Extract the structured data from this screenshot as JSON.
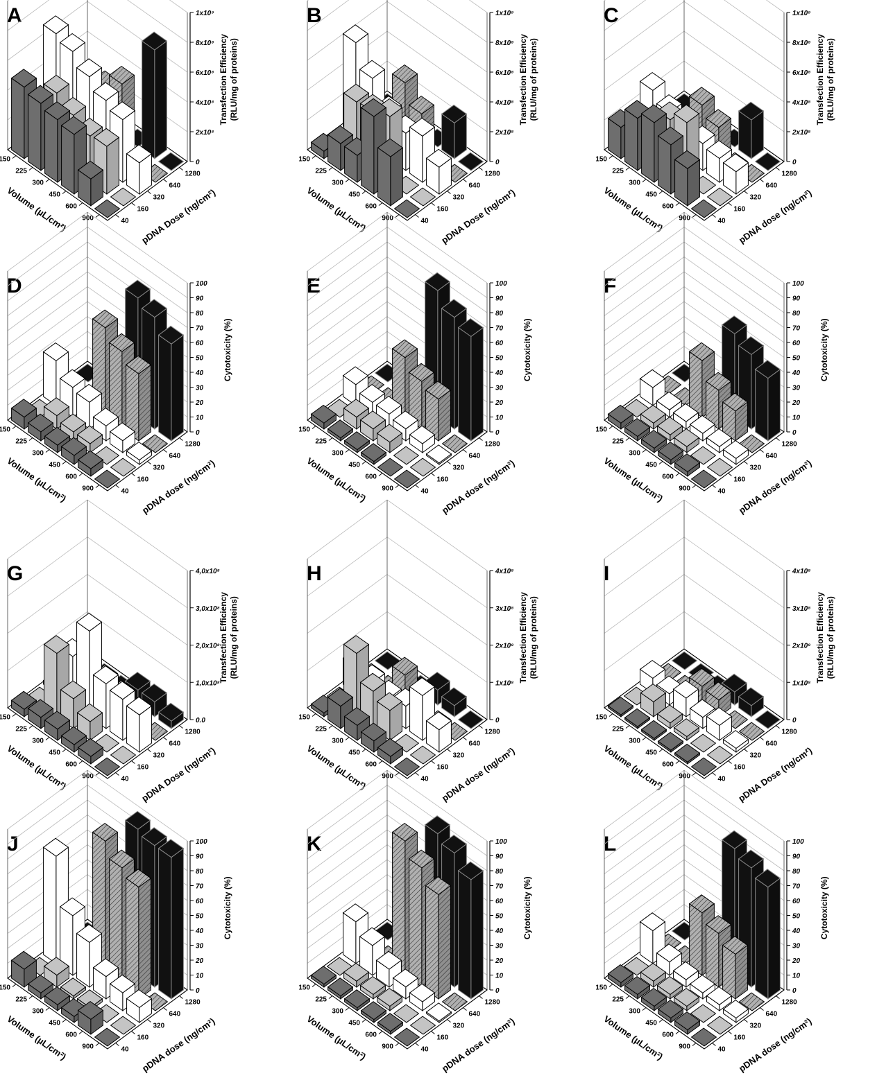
{
  "figure": {
    "axis_labels": {
      "volume": "Volume (µL/cm²)",
      "pdna_dose_upper": "pDNA Dose (ng/cm²)",
      "pdna_dose_lower": "pDNA dose (ng/cm²)",
      "transfection_line1": "Transfection Efficiency",
      "transfection_line2": "(RLU/mg of proteins)",
      "cytotoxicity": "Cytotoxicity (%)"
    },
    "volume_ticks": [
      "150",
      "225",
      "300",
      "450",
      "600",
      "900"
    ],
    "dose_ticks": [
      "40",
      "160",
      "320",
      "640",
      "1280"
    ]
  },
  "colors": {
    "dose_40": "#6e6e6e",
    "dose_160": "#c4c4c4",
    "dose_320": "#ffffff",
    "dose_640": "#b0b0b0",
    "dose_1280": "#111111",
    "grid": "#bbbbbb",
    "axis": "#000000"
  },
  "chart_data": [
    {
      "letter": "A",
      "type": "bar3d",
      "metric": "transfection",
      "zlim": [
        0,
        1000000000
      ],
      "z_ticks": [
        "0",
        "2x10⁸",
        "4x10⁸",
        "6x10⁸",
        "8x10⁸",
        "1x10⁹"
      ],
      "dose_label": "pdna_dose_upper",
      "values": {
        "40": [
          480,
          450,
          420,
          400,
          180,
          0
        ],
        "160": [
          0,
          440,
          370,
          310,
          320,
          0
        ],
        "320": [
          680,
          640,
          550,
          470,
          420,
          210
        ],
        "640": [
          0,
          0,
          390,
          500,
          0,
          0
        ],
        "1280": [
          0,
          0,
          0,
          0,
          730,
          0
        ]
      }
    },
    {
      "letter": "B",
      "type": "bar3d",
      "metric": "transfection",
      "zlim": [
        0,
        1000000000
      ],
      "z_ticks": [
        "0",
        "2x10⁸",
        "4x10⁸",
        "6x10⁸",
        "8x10⁸",
        "1x10⁹"
      ],
      "dose_label": "pdna_dose_upper",
      "values": {
        "40": [
          50,
          180,
          180,
          520,
          330,
          0
        ],
        "160": [
          0,
          380,
          390,
          440,
          0,
          0
        ],
        "320": [
          620,
          460,
          300,
          250,
          310,
          180
        ],
        "640": [
          0,
          0,
          430,
          300,
          0,
          0
        ],
        "1280": [
          0,
          0,
          0,
          0,
          240,
          0
        ]
      }
    },
    {
      "letter": "C",
      "type": "bar3d",
      "metric": "transfection",
      "zlim": [
        0,
        1000000000
      ],
      "z_ticks": [
        "0",
        "2x10⁸",
        "4x10⁸",
        "6x10⁸",
        "8x10⁸",
        "1x10⁹"
      ],
      "dose_label": "pdna_dose_lower",
      "values": {
        "40": [
          210,
          350,
          400,
          330,
          250,
          0
        ],
        "160": [
          0,
          200,
          340,
          400,
          0,
          0
        ],
        "320": [
          300,
          230,
          190,
          180,
          160,
          150
        ],
        "640": [
          0,
          0,
          280,
          210,
          0,
          0
        ],
        "1280": [
          0,
          0,
          0,
          0,
          260,
          0
        ]
      }
    },
    {
      "letter": "D",
      "type": "bar3d",
      "metric": "cytotoxicity",
      "zlim": [
        0,
        100
      ],
      "z_ticks": [
        "0",
        "10",
        "20",
        "30",
        "40",
        "50",
        "60",
        "70",
        "80",
        "90",
        "100"
      ],
      "dose_label": "pdna_dose_lower",
      "values": {
        "40": [
          8,
          6,
          5,
          6,
          5,
          0
        ],
        "160": [
          0,
          9,
          6,
          6,
          0,
          0
        ],
        "320": [
          30,
          20,
          18,
          10,
          8,
          3
        ],
        "640": [
          0,
          0,
          60,
          52,
          45,
          0
        ],
        "1280": [
          0,
          0,
          0,
          80,
          75,
          65
        ]
      }
    },
    {
      "letter": "E",
      "type": "bar3d",
      "metric": "cytotoxicity",
      "zlim": [
        0,
        100
      ],
      "z_ticks": [
        "0",
        "10",
        "20",
        "30",
        "40",
        "50",
        "60",
        "70",
        "80",
        "90",
        "100"
      ],
      "dose_label": "pdna_dose_lower",
      "values": {
        "40": [
          4,
          2,
          2,
          2,
          0,
          0
        ],
        "160": [
          0,
          8,
          8,
          7,
          0,
          0
        ],
        "320": [
          14,
          10,
          10,
          8,
          6,
          1
        ],
        "640": [
          0,
          0,
          40,
          32,
          28,
          0
        ],
        "1280": [
          0,
          0,
          0,
          85,
          75,
          70
        ]
      }
    },
    {
      "letter": "F",
      "type": "bar3d",
      "metric": "cytotoxicity",
      "zlim": [
        0,
        100
      ],
      "z_ticks": [
        "0",
        "10",
        "20",
        "30",
        "40",
        "50",
        "60",
        "70",
        "80",
        "90",
        "100"
      ],
      "dose_label": "pdna_dose_lower",
      "values": {
        "40": [
          4,
          3,
          3,
          3,
          3,
          0
        ],
        "160": [
          0,
          4,
          4,
          4,
          0,
          0
        ],
        "320": [
          12,
          5,
          5,
          5,
          4,
          4
        ],
        "640": [
          0,
          0,
          38,
          26,
          20,
          0
        ],
        "1280": [
          0,
          0,
          0,
          56,
          50,
          42
        ]
      }
    },
    {
      "letter": "G",
      "type": "bar3d",
      "metric": "transfection",
      "zlim": [
        0,
        400000000
      ],
      "z_ticks": [
        "0.0",
        "1,0x10⁸",
        "2,0x10⁸",
        "3,0x10⁸",
        "4,0x10⁸"
      ],
      "dose_label": "pdna_dose_upper",
      "values": {
        "40": [
          20,
          30,
          30,
          20,
          20,
          0
        ],
        "160": [
          0,
          170,
          80,
          50,
          0,
          0
        ],
        "320": [
          10,
          130,
          230,
          120,
          110,
          100
        ],
        "640": [
          0,
          0,
          60,
          50,
          0,
          0
        ],
        "1280": [
          0,
          0,
          0,
          40,
          40,
          20
        ]
      }
    },
    {
      "letter": "H",
      "type": "bar3d",
      "metric": "transfection",
      "zlim": [
        0,
        400000000
      ],
      "z_ticks": [
        "0",
        "1x10⁸",
        "2x10⁸",
        "3x10⁸",
        "4x10⁸"
      ],
      "dose_label": "pdna_dose_lower",
      "values": {
        "40": [
          10,
          60,
          40,
          30,
          20,
          0
        ],
        "160": [
          0,
          170,
          100,
          80,
          0,
          0
        ],
        "320": [
          70,
          60,
          50,
          60,
          120,
          60
        ],
        "640": [
          0,
          0,
          80,
          50,
          0,
          0
        ],
        "1280": [
          0,
          0,
          0,
          40,
          30,
          0
        ]
      }
    },
    {
      "letter": "I",
      "type": "bar3d",
      "metric": "transfection",
      "zlim": [
        0,
        400000000
      ],
      "z_ticks": [
        "0",
        "1x10⁸",
        "2x10⁸",
        "3x10⁸",
        "4x10⁸"
      ],
      "dose_label": "pdna_dose_upper",
      "values": {
        "40": [
          5,
          5,
          5,
          5,
          5,
          0
        ],
        "160": [
          0,
          40,
          15,
          10,
          0,
          0
        ],
        "320": [
          40,
          30,
          50,
          30,
          40,
          10
        ],
        "640": [
          0,
          0,
          50,
          45,
          0,
          0
        ],
        "1280": [
          0,
          0,
          0,
          35,
          30,
          0
        ]
      }
    },
    {
      "letter": "J",
      "type": "bar3d",
      "metric": "cytotoxicity",
      "zlim": [
        0,
        100
      ],
      "z_ticks": [
        "0",
        "10",
        "20",
        "30",
        "40",
        "50",
        "60",
        "70",
        "80",
        "90",
        "100"
      ],
      "dose_label": "pdna_dose_lower",
      "values": {
        "40": [
          12,
          4,
          4,
          4,
          10,
          0
        ],
        "160": [
          0,
          8,
          2,
          2,
          0,
          0
        ],
        "320": [
          72,
          40,
          30,
          15,
          12,
          10
        ],
        "640": [
          0,
          0,
          90,
          80,
          75,
          0
        ],
        "1280": [
          0,
          0,
          0,
          98,
          95,
          95
        ]
      }
    },
    {
      "letter": "K",
      "type": "bar3d",
      "metric": "cytotoxicity",
      "zlim": [
        0,
        100
      ],
      "z_ticks": [
        "0",
        "10",
        "20",
        "30",
        "40",
        "50",
        "60",
        "70",
        "80",
        "90",
        "100"
      ],
      "dose_label": "pdna_dose_lower",
      "values": {
        "40": [
          2,
          2,
          2,
          2,
          2,
          0
        ],
        "160": [
          0,
          4,
          3,
          3,
          0,
          0
        ],
        "320": [
          28,
          20,
          12,
          8,
          6,
          1
        ],
        "640": [
          0,
          0,
          90,
          80,
          70,
          0
        ],
        "1280": [
          0,
          0,
          0,
          95,
          90,
          80
        ]
      }
    },
    {
      "letter": "L",
      "type": "bar3d",
      "metric": "cytotoxicity",
      "zlim": [
        0,
        100
      ],
      "z_ticks": [
        "0",
        "10",
        "20",
        "30",
        "40",
        "50",
        "60",
        "70",
        "80",
        "90",
        "100"
      ],
      "dose_label": "pdna_dose_lower",
      "values": {
        "40": [
          3,
          3,
          3,
          3,
          3,
          0
        ],
        "160": [
          0,
          4,
          3,
          3,
          0,
          0
        ],
        "320": [
          22,
          9,
          5,
          4,
          4,
          3
        ],
        "640": [
          0,
          0,
          42,
          36,
          30,
          0
        ],
        "1280": [
          0,
          0,
          0,
          85,
          80,
          75
        ]
      }
    }
  ]
}
